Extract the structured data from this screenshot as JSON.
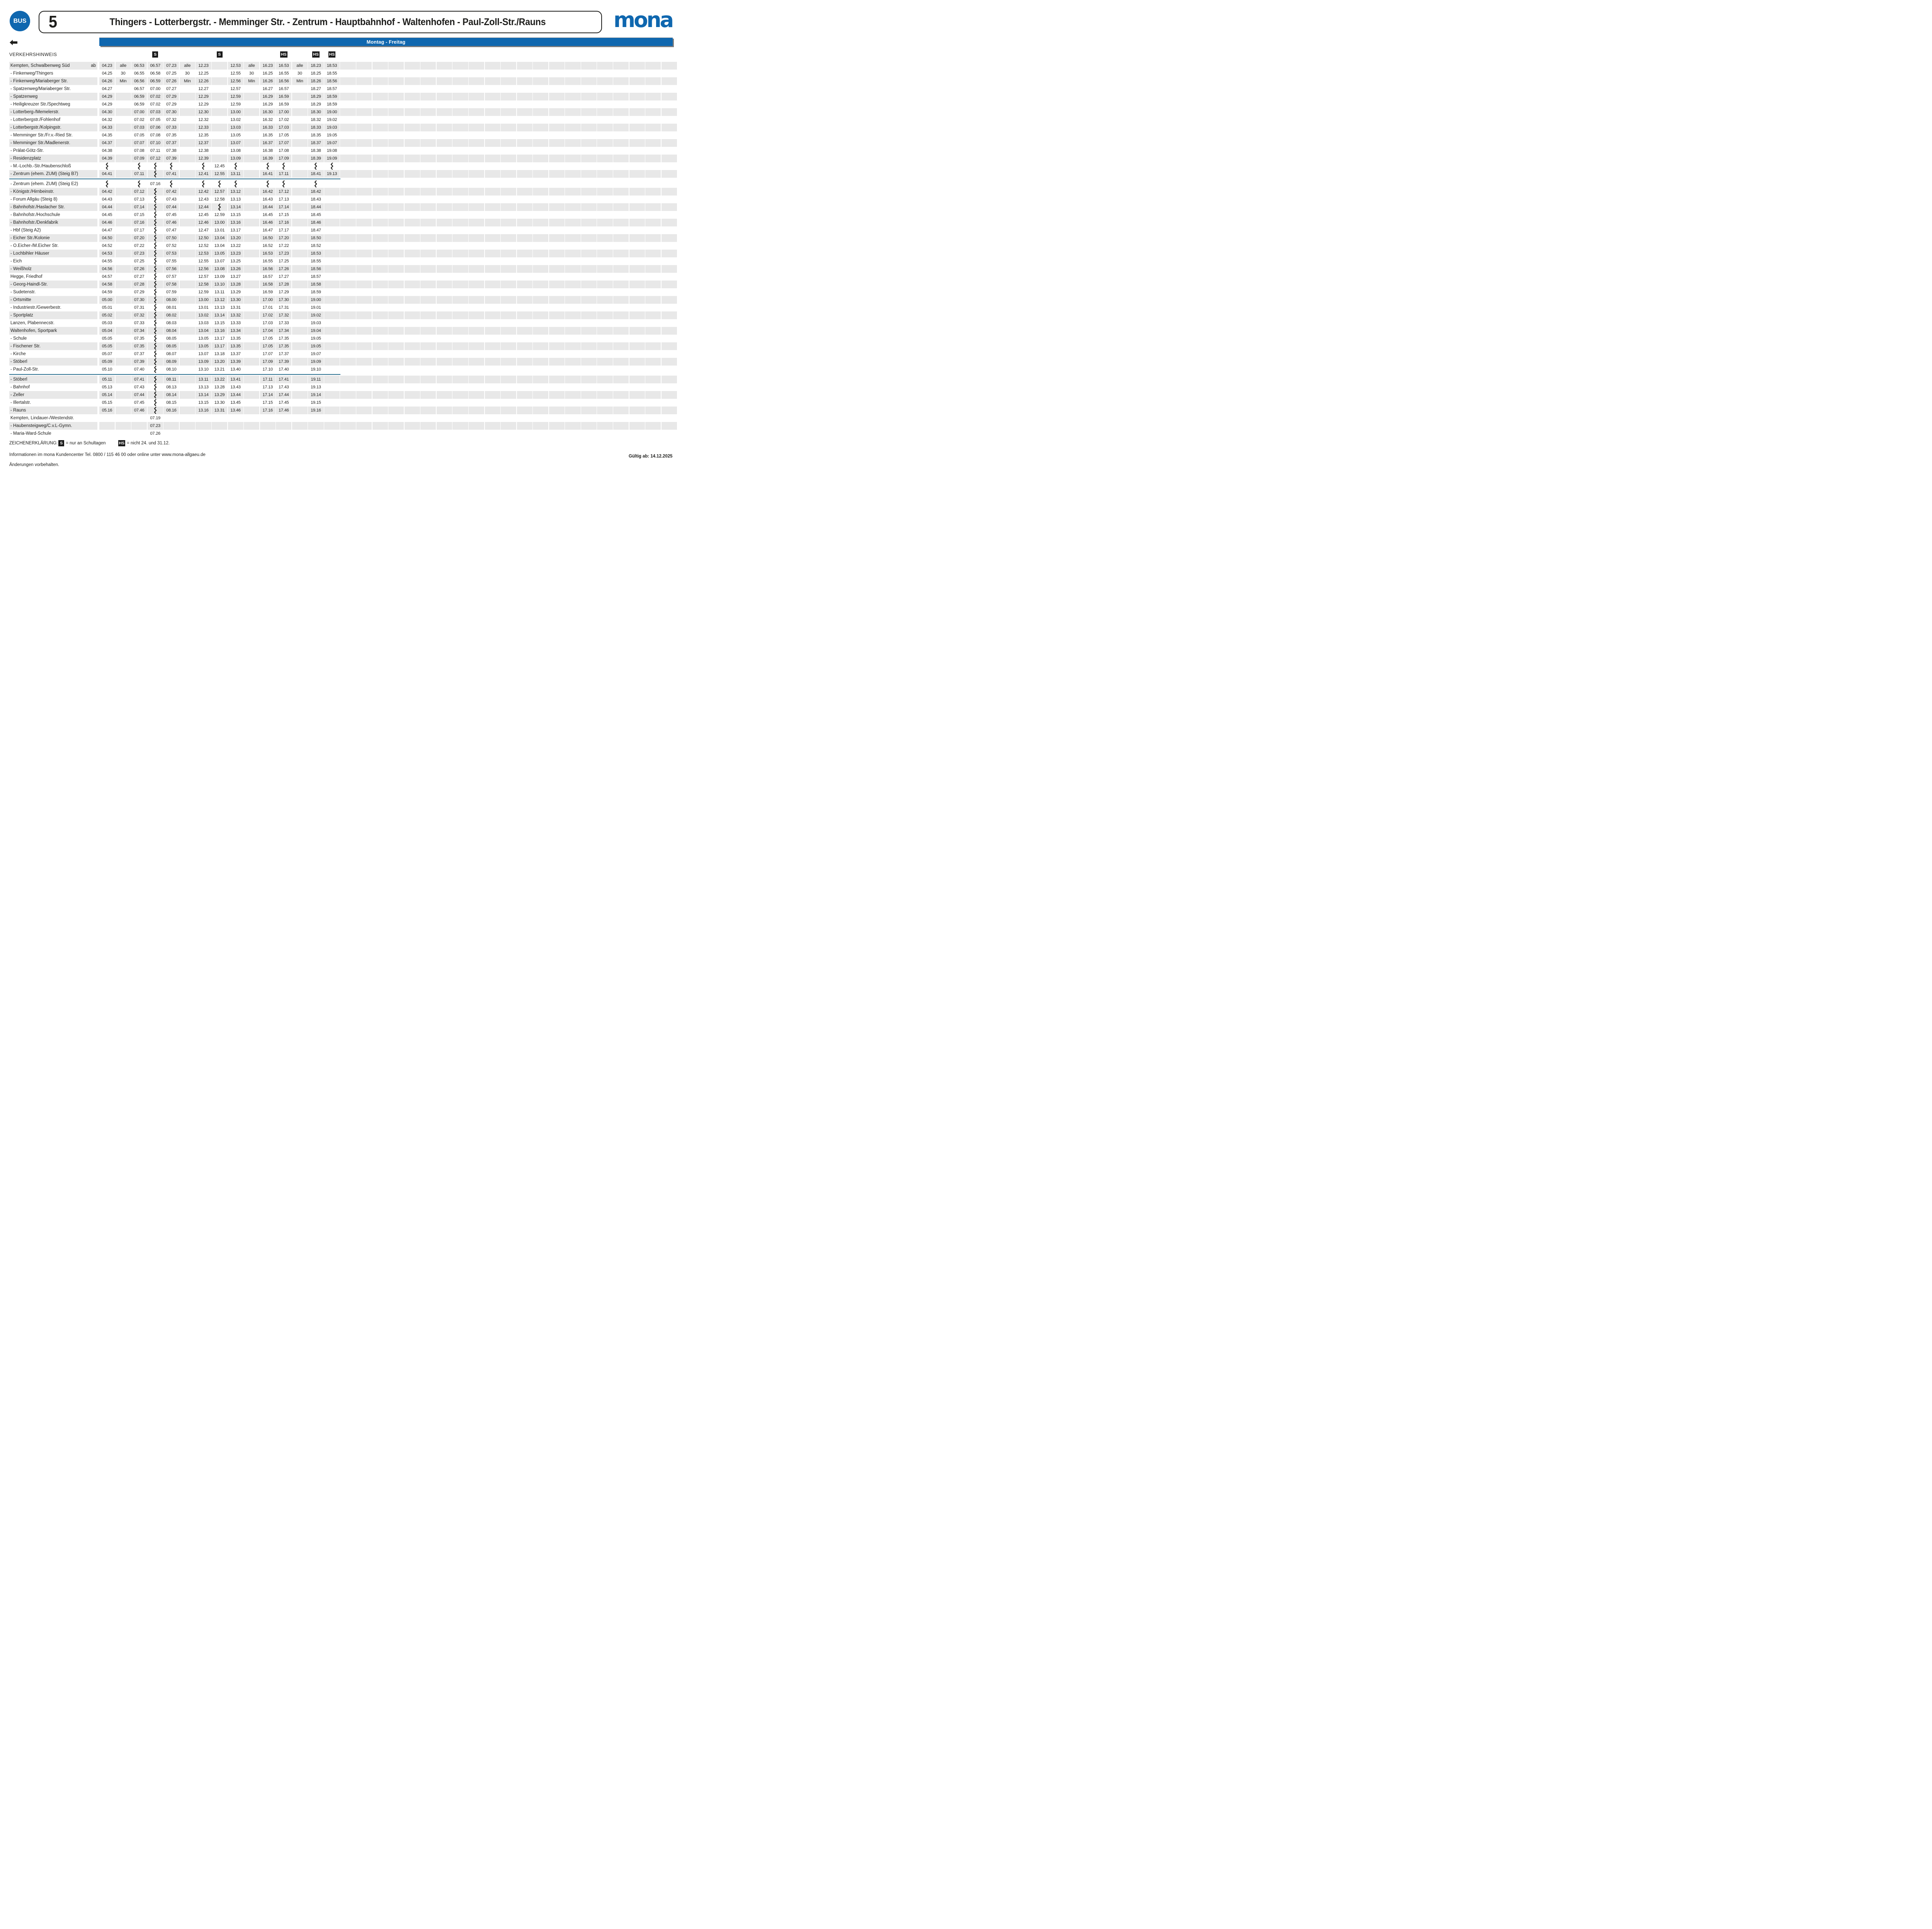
{
  "header": {
    "bus_badge_label": "BUS",
    "line_number": "5",
    "line_title": "Thingers - Lotterbergstr. - Memminger Str. - Zentrum - Hauptbahnhof - Waltenhofen - Paul-Zoll-Str./Rauns",
    "brand_logo_text": "mona"
  },
  "day_bar": {
    "label": "Montag - Freitag"
  },
  "table": {
    "hint_label": "VERKEHRSHINWEIS",
    "column_flags": [
      "",
      "",
      "",
      "S",
      "",
      "",
      "",
      "S",
      "",
      "",
      "",
      "HS",
      "",
      "HS",
      "HS"
    ],
    "trailing_empty_columns": 21,
    "rows": [
      {
        "name": "Kempten, Schwalbenweg Süd",
        "ab": "ab",
        "cells": [
          "04.23",
          "alle",
          "06.53",
          "06.57",
          "07.23",
          "alle",
          "12.23",
          "",
          "12.53",
          "alle",
          "16.23",
          "16.53",
          "alle",
          "18.23",
          "18.53"
        ]
      },
      {
        "name": "- Finkenweg/Thingers",
        "cells": [
          "04.25",
          "30",
          "06.55",
          "06.58",
          "07.25",
          "30",
          "12.25",
          "",
          "12.55",
          "30",
          "16.25",
          "16.55",
          "30",
          "18.25",
          "18.55"
        ]
      },
      {
        "name": "- Finkenweg/Mariaberger Str.",
        "cells": [
          "04.26",
          "Min",
          "06.56",
          "06.59",
          "07.26",
          "Min",
          "12.26",
          "",
          "12.56",
          "Min",
          "16.26",
          "16.56",
          "Min",
          "18.26",
          "18.56"
        ]
      },
      {
        "name": "- Spatzenweg/Mariaberger Str.",
        "cells": [
          "04.27",
          "",
          "06.57",
          "07.00",
          "07.27",
          "",
          "12.27",
          "",
          "12.57",
          "",
          "16.27",
          "16.57",
          "",
          "18.27",
          "18.57"
        ]
      },
      {
        "name": "- Spatzenweg",
        "cells": [
          "04.29",
          "",
          "06.59",
          "07.02",
          "07.29",
          "",
          "12.29",
          "",
          "12.59",
          "",
          "16.29",
          "16.59",
          "",
          "18.29",
          "18.59"
        ]
      },
      {
        "name": "- Heiligkreuzer Str./Spechtweg",
        "cells": [
          "04.29",
          "",
          "06.59",
          "07.02",
          "07.29",
          "",
          "12.29",
          "",
          "12.59",
          "",
          "16.29",
          "16.59",
          "",
          "18.29",
          "18.59"
        ]
      },
      {
        "name": "- Lotterberg-/Memelerstr.",
        "cells": [
          "04.30",
          "",
          "07.00",
          "07.03",
          "07.30",
          "",
          "12.30",
          "",
          "13.00",
          "",
          "16.30",
          "17.00",
          "",
          "18.30",
          "19.00"
        ]
      },
      {
        "name": "- Lotterbergstr./Fohlenhof",
        "cells": [
          "04.32",
          "",
          "07.02",
          "07.05",
          "07.32",
          "",
          "12.32",
          "",
          "13.02",
          "",
          "16.32",
          "17.02",
          "",
          "18.32",
          "19.02"
        ]
      },
      {
        "name": "- Lotterbergstr./Kolpingstr.",
        "cells": [
          "04.33",
          "",
          "07.03",
          "07.06",
          "07.33",
          "",
          "12.33",
          "",
          "13.03",
          "",
          "16.33",
          "17.03",
          "",
          "18.33",
          "19.03"
        ]
      },
      {
        "name": "- Memminger Str./Fr.v.-Ried Str.",
        "cells": [
          "04.35",
          "",
          "07.05",
          "07.08",
          "07.35",
          "",
          "12.35",
          "",
          "13.05",
          "",
          "16.35",
          "17.05",
          "",
          "18.35",
          "19.05"
        ]
      },
      {
        "name": "- Memminger Str./Madlenerstr.",
        "cells": [
          "04.37",
          "",
          "07.07",
          "07.10",
          "07.37",
          "",
          "12.37",
          "",
          "13.07",
          "",
          "16.37",
          "17.07",
          "",
          "18.37",
          "19.07"
        ]
      },
      {
        "name": "- Prälat-Götz-Str.",
        "cells": [
          "04.38",
          "",
          "07.08",
          "07.11",
          "07.38",
          "",
          "12.38",
          "",
          "13.08",
          "",
          "16.38",
          "17.08",
          "",
          "18.38",
          "19.08"
        ]
      },
      {
        "name": "- Residenzplatz",
        "cells": [
          "04.39",
          "",
          "07.09",
          "07.12",
          "07.39",
          "",
          "12.39",
          "",
          "13.09",
          "",
          "16.39",
          "17.09",
          "",
          "18.39",
          "19.09"
        ]
      },
      {
        "name": "- M.-Lochb.-Str./Haubenschloß",
        "cells": [
          "~",
          "",
          "~",
          "~",
          "~",
          "",
          "~",
          "12.45",
          "~",
          "",
          "~",
          "~",
          "",
          "~",
          "~"
        ]
      },
      {
        "name": "- Zentrum (ehem. ZUM) (Steig B7)",
        "divider_after": true,
        "cells": [
          "04.41",
          "",
          "07.11",
          "~",
          "07.41",
          "",
          "12.41",
          "12.55",
          "13.11",
          "",
          "16.41",
          "17.11",
          "",
          "18.41",
          "19.13"
        ]
      },
      {
        "name": "- Zentrum (ehem. ZUM) (Steig E2)",
        "cells": [
          "~",
          "",
          "~",
          "07.16",
          "~",
          "",
          "~",
          "~",
          "~",
          "",
          "~",
          "~",
          "",
          "~",
          ""
        ]
      },
      {
        "name": "- Königstr./Hirnbeinstr.",
        "cells": [
          "04.42",
          "",
          "07.12",
          "~",
          "07.42",
          "",
          "12.42",
          "12.57",
          "13.12",
          "",
          "16.42",
          "17.12",
          "",
          "18.42",
          ""
        ]
      },
      {
        "name": "- Forum Allgäu (Steig 8)",
        "cells": [
          "04.43",
          "",
          "07.13",
          "~",
          "07.43",
          "",
          "12.43",
          "12.58",
          "13.13",
          "",
          "16.43",
          "17.13",
          "",
          "18.43",
          ""
        ]
      },
      {
        "name": "- Bahnhofstr./Haslacher Str.",
        "cells": [
          "04.44",
          "",
          "07.14",
          "~",
          "07.44",
          "",
          "12.44",
          "~",
          "13.14",
          "",
          "16.44",
          "17.14",
          "",
          "18.44",
          ""
        ]
      },
      {
        "name": "- Bahnhofstr./Hochschule",
        "cells": [
          "04.45",
          "",
          "07.15",
          "~",
          "07.45",
          "",
          "12.45",
          "12.59",
          "13.15",
          "",
          "16.45",
          "17.15",
          "",
          "18.45",
          ""
        ]
      },
      {
        "name": "- Bahnhofstr./Denkfabrik",
        "cells": [
          "04.46",
          "",
          "07.16",
          "~",
          "07.46",
          "",
          "12.46",
          "13.00",
          "13.16",
          "",
          "16.46",
          "17.16",
          "",
          "18.46",
          ""
        ]
      },
      {
        "name": "- Hbf (Steig A2)",
        "cells": [
          "04.47",
          "",
          "07.17",
          "~",
          "07.47",
          "",
          "12.47",
          "13.01",
          "13.17",
          "",
          "16.47",
          "17.17",
          "",
          "18.47",
          ""
        ]
      },
      {
        "name": "- Eicher Str./Kolonie",
        "cells": [
          "04.50",
          "",
          "07.20",
          "~",
          "07.50",
          "",
          "12.50",
          "13.04",
          "13.20",
          "",
          "16.50",
          "17.20",
          "",
          "18.50",
          ""
        ]
      },
      {
        "name": "- O.Eicher-/M.Eicher Str.",
        "cells": [
          "04.52",
          "",
          "07.22",
          "~",
          "07.52",
          "",
          "12.52",
          "13.04",
          "13.22",
          "",
          "16.52",
          "17.22",
          "",
          "18.52",
          ""
        ]
      },
      {
        "name": "- Lochbihler Häuser",
        "cells": [
          "04.53",
          "",
          "07.23",
          "~",
          "07.53",
          "",
          "12.53",
          "13.05",
          "13.23",
          "",
          "16.53",
          "17.23",
          "",
          "18.53",
          ""
        ]
      },
      {
        "name": "- Eich",
        "cells": [
          "04.55",
          "",
          "07.25",
          "~",
          "07.55",
          "",
          "12.55",
          "13.07",
          "13.25",
          "",
          "16.55",
          "17.25",
          "",
          "18.55",
          ""
        ]
      },
      {
        "name": "- Weißholz",
        "cells": [
          "04.56",
          "",
          "07.26",
          "~",
          "07.56",
          "",
          "12.56",
          "13.08",
          "13.26",
          "",
          "16.56",
          "17.26",
          "",
          "18.56",
          ""
        ]
      },
      {
        "name": "Hegge, Friedhof",
        "cells": [
          "04.57",
          "",
          "07.27",
          "~",
          "07.57",
          "",
          "12.57",
          "13.09",
          "13.27",
          "",
          "16.57",
          "17.27",
          "",
          "18.57",
          ""
        ]
      },
      {
        "name": "- Georg-Haindl-Str.",
        "cells": [
          "04.58",
          "",
          "07.28",
          "~",
          "07.58",
          "",
          "12.58",
          "13.10",
          "13.28",
          "",
          "16.58",
          "17.28",
          "",
          "18.58",
          ""
        ]
      },
      {
        "name": "- Sudetenstr.",
        "cells": [
          "04.59",
          "",
          "07.29",
          "~",
          "07.59",
          "",
          "12.59",
          "13.11",
          "13.29",
          "",
          "16.59",
          "17.29",
          "",
          "18.59",
          ""
        ]
      },
      {
        "name": "- Ortsmitte",
        "cells": [
          "05.00",
          "",
          "07.30",
          "~",
          "08.00",
          "",
          "13.00",
          "13.12",
          "13.30",
          "",
          "17.00",
          "17.30",
          "",
          "19.00",
          ""
        ]
      },
      {
        "name": "- Industriestr./Gewerbestr.",
        "cells": [
          "05.01",
          "",
          "07.31",
          "~",
          "08.01",
          "",
          "13.01",
          "13.13",
          "13.31",
          "",
          "17.01",
          "17.31",
          "",
          "19.01",
          ""
        ]
      },
      {
        "name": "- Sportplatz",
        "cells": [
          "05.02",
          "",
          "07.32",
          "~",
          "08.02",
          "",
          "13.02",
          "13.14",
          "13.32",
          "",
          "17.02",
          "17.32",
          "",
          "19.02",
          ""
        ]
      },
      {
        "name": "Lanzen, Plabennecstr.",
        "cells": [
          "05.03",
          "",
          "07.33",
          "~",
          "08.03",
          "",
          "13.03",
          "13.15",
          "13.33",
          "",
          "17.03",
          "17.33",
          "",
          "19.03",
          ""
        ]
      },
      {
        "name": "Waltenhofen, Sportpark",
        "cells": [
          "05.04",
          "",
          "07.34",
          "~",
          "08.04",
          "",
          "13.04",
          "13.16",
          "13.34",
          "",
          "17.04",
          "17.34",
          "",
          "19.04",
          ""
        ]
      },
      {
        "name": "- Schule",
        "cells": [
          "05.05",
          "",
          "07.35",
          "~",
          "08.05",
          "",
          "13.05",
          "13.17",
          "13.35",
          "",
          "17.05",
          "17.35",
          "",
          "19.05",
          ""
        ]
      },
      {
        "name": "- Fischener Str.",
        "cells": [
          "05.05",
          "",
          "07.35",
          "~",
          "08.05",
          "",
          "13.05",
          "13.17",
          "13.35",
          "",
          "17.05",
          "17.35",
          "",
          "19.05",
          ""
        ]
      },
      {
        "name": "- Kirche",
        "cells": [
          "05.07",
          "",
          "07.37",
          "~",
          "08.07",
          "",
          "13.07",
          "13.18",
          "13.37",
          "",
          "17.07",
          "17.37",
          "",
          "19.07",
          ""
        ]
      },
      {
        "name": "- Stöberl",
        "cells": [
          "05.09",
          "",
          "07.39",
          "~",
          "08.09",
          "",
          "13.09",
          "13.20",
          "13.39",
          "",
          "17.09",
          "17.39",
          "",
          "19.09",
          ""
        ]
      },
      {
        "name": "- Paul-Zoll-Str.",
        "divider_after": true,
        "cells": [
          "05.10",
          "",
          "07.40",
          "~",
          "08.10",
          "",
          "13.10",
          "13.21",
          "13.40",
          "",
          "17.10",
          "17.40",
          "",
          "19.10",
          ""
        ]
      },
      {
        "name": "- Stöberl",
        "cells": [
          "05.11",
          "",
          "07.41",
          "~",
          "08.11",
          "",
          "13.11",
          "13.22",
          "13.41",
          "",
          "17.11",
          "17.41",
          "",
          "19.11",
          ""
        ]
      },
      {
        "name": "- Bahnhof",
        "cells": [
          "05.13",
          "",
          "07.43",
          "~",
          "08.13",
          "",
          "13.13",
          "13.28",
          "13.43",
          "",
          "17.13",
          "17.43",
          "",
          "19.13",
          ""
        ]
      },
      {
        "name": "- Zeller",
        "cells": [
          "05.14",
          "",
          "07.44",
          "~",
          "08.14",
          "",
          "13.14",
          "13.29",
          "13.44",
          "",
          "17.14",
          "17.44",
          "",
          "19.14",
          ""
        ]
      },
      {
        "name": "- Illertalstr.",
        "cells": [
          "05.15",
          "",
          "07.45",
          "~",
          "08.15",
          "",
          "13.15",
          "13.30",
          "13.45",
          "",
          "17.15",
          "17.45",
          "",
          "19.15",
          ""
        ]
      },
      {
        "name": "- Rauns",
        "cells": [
          "05.16",
          "",
          "07.46",
          "~",
          "08.16",
          "",
          "13.16",
          "13.31",
          "13.46",
          "",
          "17.16",
          "17.46",
          "",
          "19.16",
          ""
        ]
      },
      {
        "name": "Kempten, Lindauer-/Westendstr.",
        "cells": [
          "",
          "",
          "",
          "07.19",
          "",
          "",
          "",
          "",
          "",
          "",
          "",
          "",
          "",
          "",
          ""
        ]
      },
      {
        "name": "- Haubensteigweg/C.v.L-Gymn.",
        "cells": [
          "",
          "",
          "",
          "07.23",
          "",
          "",
          "",
          "",
          "",
          "",
          "",
          "",
          "",
          "",
          ""
        ]
      },
      {
        "name": "- Maria-Ward-Schule",
        "cells": [
          "",
          "",
          "",
          "07.26",
          "",
          "",
          "",
          "",
          "",
          "",
          "",
          "",
          "",
          "",
          ""
        ]
      }
    ]
  },
  "legend": {
    "heading": "ZEICHENERKLÄRUNG:",
    "items": [
      {
        "symbol": "S",
        "meaning": "= nur an Schultagen"
      },
      {
        "symbol": "HS",
        "meaning": "= nicht 24. und 31.12."
      }
    ]
  },
  "footer": {
    "info": "Informationen im mona Kundencenter Tel. 0800 / 115 46 00 oder online unter www.mona-allgaeu.de",
    "disclaimer": "Änderungen vorbehalten.",
    "valid_from": "Gültig ab: 14.12.2025"
  },
  "colors": {
    "accent_blue": "#0f67af",
    "divider_teal": "#2b708f",
    "row_gray": "#e8e8e8",
    "shadow_gray": "#7d7d7d",
    "badge_black": "#1a1a1a"
  }
}
